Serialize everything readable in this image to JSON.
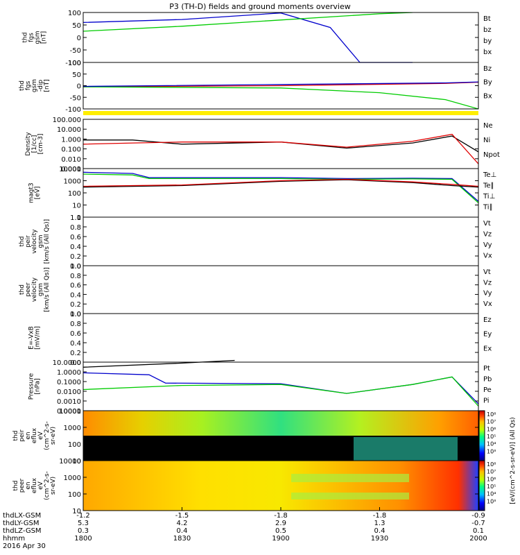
{
  "title": "P3 (TH-D) fields and ground moments overview",
  "colors": {
    "black": "#000000",
    "red": "#e00000",
    "green": "#00cc00",
    "blue": "#0000cc",
    "yellow": "#ffee00"
  },
  "panels": [
    {
      "ylabel": [
        "thd",
        "fgs",
        "gsm",
        "[nT]"
      ],
      "ticks": [
        "100",
        "50",
        "0",
        "-50",
        "-100"
      ],
      "legend": [
        {
          "text": "Bt",
          "color": "black"
        },
        {
          "text": "bz",
          "color": "red"
        },
        {
          "text": "by",
          "color": "green"
        },
        {
          "text": "bx",
          "color": "blue"
        }
      ]
    },
    {
      "ylabel": [
        "thd",
        "fgs",
        "gsm",
        "-dip",
        "[nT]"
      ],
      "ticks": [
        "100",
        "50",
        "0",
        "-50",
        "-100"
      ],
      "legend": [
        {
          "text": "Bz",
          "color": "red"
        },
        {
          "text": "By",
          "color": "green"
        },
        {
          "text": "Bx",
          "color": "blue"
        }
      ]
    },
    {
      "ylabel": [
        "Density",
        "[1/cc]",
        "[cm-3]"
      ],
      "ticks": [
        "100.000",
        "10.000",
        "1.000",
        "0.100",
        "0.010",
        "0.001"
      ],
      "legend": [
        {
          "text": "Ne",
          "color": "red"
        },
        {
          "text": "Ni",
          "color": "black"
        },
        {
          "text": "Npot",
          "color": "blue"
        }
      ]
    },
    {
      "ylabel": [
        "magt3",
        "[eV]"
      ],
      "ticks": [
        "10000",
        "1000",
        "100",
        "10",
        "1"
      ],
      "legend": [
        {
          "text": "Te⊥",
          "color": "red"
        },
        {
          "text": "Te∥",
          "color": "black"
        },
        {
          "text": "Ti⊥",
          "color": "blue"
        },
        {
          "text": "Ti∥",
          "color": "green"
        }
      ]
    },
    {
      "ylabel": [
        "thd",
        "peir",
        "velocity",
        "gsm",
        "[km/s (All Qs)]"
      ],
      "ticks": [
        "1.0",
        "0.8",
        "0.6",
        "0.4",
        "0.2",
        "0.0"
      ],
      "legend": [
        {
          "text": "Vt",
          "color": "black"
        },
        {
          "text": "Vz",
          "color": "red"
        },
        {
          "text": "Vy",
          "color": "green"
        },
        {
          "text": "Vx",
          "color": "blue"
        }
      ]
    },
    {
      "ylabel": [
        "thd",
        "peer",
        "velocity",
        "gsm",
        "[km/s (All Qs)]"
      ],
      "ticks": [
        "1.0",
        "0.8",
        "0.6",
        "0.4",
        "0.2",
        "0.0"
      ],
      "legend": [
        {
          "text": "Vt",
          "color": "black"
        },
        {
          "text": "Vz",
          "color": "red"
        },
        {
          "text": "Vy",
          "color": "green"
        },
        {
          "text": "Vx",
          "color": "blue"
        }
      ]
    },
    {
      "ylabel": [
        "E=-VxB",
        "[mV/m]"
      ],
      "ticks": [
        "1.0",
        "0.8",
        "0.6",
        "0.4",
        "0.2",
        "0.0"
      ],
      "legend": [
        {
          "text": "Ez",
          "color": "red"
        },
        {
          "text": "Ey",
          "color": "green"
        },
        {
          "text": "Ex",
          "color": "blue"
        }
      ]
    },
    {
      "ylabel": [
        "Pressure",
        "[nPa]"
      ],
      "ticks": [
        "10.0000",
        "1.0000",
        "0.1000",
        "0.0100",
        "0.0010",
        "0.0001"
      ],
      "legend": [
        {
          "text": "Pt",
          "color": "black"
        },
        {
          "text": "Pb",
          "color": "red"
        },
        {
          "text": "Pe",
          "color": "green"
        },
        {
          "text": "Pi",
          "color": "blue"
        }
      ]
    },
    {
      "ylabel": [
        "thd",
        "peir",
        "en",
        "eflux",
        "eV",
        "(cm^2-s-",
        "sr-eV)"
      ],
      "ticks": [
        "10000",
        "1000",
        "100",
        "10"
      ],
      "legend": []
    },
    {
      "ylabel": [
        "thd",
        "peer",
        "en",
        "eflux",
        "eV",
        "(cm^2-s-",
        "sr-eV)"
      ],
      "ticks": [
        "10000",
        "1000",
        "100",
        "10"
      ],
      "legend": []
    }
  ],
  "colorbar": {
    "ticks_top": [
      "10⁸",
      "10⁷",
      "10⁶",
      "10⁵",
      "10⁴",
      "10³"
    ],
    "ticks_bottom": [
      "10⁸",
      "10⁷",
      "10⁶",
      "10⁵",
      "10⁴",
      "10³"
    ],
    "label": "[eV/(cm^2-s-sr-eV)] (All Qs)"
  },
  "xaxis": {
    "row_labels": [
      "thdLX-GSM",
      "thdLY-GSM",
      "thdLZ-GSM",
      "hhmm",
      "2016 Apr 30"
    ],
    "ticks": [
      {
        "lx": "-1.2",
        "ly": "5.3",
        "lz": "0.3",
        "hhmm": "1800"
      },
      {
        "lx": "-1.5",
        "ly": "4.2",
        "lz": "0.4",
        "hhmm": "1830"
      },
      {
        "lx": "-1.8",
        "ly": "2.9",
        "lz": "0.5",
        "hhmm": "1900"
      },
      {
        "lx": "-1.8",
        "ly": "1.3",
        "lz": "0.4",
        "hhmm": "1930"
      },
      {
        "lx": "-0.9",
        "ly": "-0.7",
        "lz": "0.1",
        "hhmm": "2000"
      }
    ]
  },
  "chart_data": {
    "type": "line",
    "title": "P3 (TH-D) fields and ground moments overview",
    "x_time_range": [
      "1800",
      "2000"
    ],
    "series": [
      {
        "name": "bx",
        "panel": 0,
        "color": "blue",
        "x_min": [
          0,
          30,
          60,
          75,
          84,
          100
        ],
        "values": [
          60,
          72,
          98,
          40,
          -100,
          -100
        ]
      },
      {
        "name": "by",
        "panel": 0,
        "color": "green",
        "x_min": [
          0,
          30,
          60,
          90,
          100
        ],
        "values": [
          25,
          45,
          70,
          95,
          100
        ]
      },
      {
        "name": "Bz",
        "panel": 1,
        "color": "red",
        "x_min": [
          0,
          60,
          110,
          120,
          125,
          130
        ],
        "values": [
          -5,
          0,
          10,
          15,
          -80,
          100
        ]
      },
      {
        "name": "By",
        "panel": 1,
        "color": "green",
        "x_min": [
          0,
          60,
          90,
          110,
          120,
          128
        ],
        "values": [
          -5,
          -10,
          -30,
          -60,
          -100,
          -150
        ]
      },
      {
        "name": "Bx",
        "panel": 1,
        "color": "blue",
        "x_min": [
          0,
          60,
          110,
          120
        ],
        "values": [
          -3,
          5,
          12,
          16
        ]
      },
      {
        "name": "Ni",
        "panel": 2,
        "color": "black",
        "x_min": [
          0,
          15,
          30,
          60,
          80,
          100,
          112,
          120
        ],
        "values": [
          0.8,
          0.8,
          0.3,
          0.5,
          0.12,
          0.4,
          2.0,
          0.05
        ]
      },
      {
        "name": "Ne",
        "panel": 2,
        "color": "red",
        "x_min": [
          0,
          15,
          30,
          60,
          80,
          100,
          112,
          120
        ],
        "values": [
          0.3,
          0.4,
          0.5,
          0.5,
          0.15,
          0.6,
          3.0,
          0.003
        ]
      },
      {
        "name": "Ti⊥",
        "panel": 3,
        "color": "blue",
        "x_min": [
          0,
          15,
          20,
          60,
          80,
          100,
          112,
          120
        ],
        "values": [
          5000,
          4000,
          1800,
          1800,
          1500,
          1600,
          1500,
          20
        ]
      },
      {
        "name": "Ti∥",
        "panel": 3,
        "color": "green",
        "x_min": [
          0,
          15,
          20,
          60,
          80,
          100,
          112,
          120
        ],
        "values": [
          3500,
          3000,
          1500,
          1500,
          1300,
          1400,
          1300,
          15
        ]
      },
      {
        "name": "Te∥",
        "panel": 3,
        "color": "black",
        "x_min": [
          0,
          30,
          60,
          80,
          100,
          112,
          120
        ],
        "values": [
          300,
          400,
          900,
          1200,
          700,
          400,
          300
        ]
      },
      {
        "name": "Te⊥",
        "panel": 3,
        "color": "red",
        "x_min": [
          0,
          30,
          60,
          80,
          100,
          112,
          120
        ],
        "values": [
          350,
          450,
          1000,
          1300,
          800,
          500,
          350
        ]
      },
      {
        "name": "Pt",
        "panel": 7,
        "color": "black",
        "x_min": [
          0,
          30,
          46
        ],
        "values": [
          3,
          8,
          15
        ]
      },
      {
        "name": "Pi",
        "panel": 7,
        "color": "blue",
        "x_min": [
          0,
          20,
          25,
          60,
          80,
          100,
          112,
          120
        ],
        "values": [
          0.8,
          0.5,
          0.07,
          0.06,
          0.006,
          0.05,
          0.3,
          0.0005
        ]
      },
      {
        "name": "Pe",
        "panel": 7,
        "color": "green",
        "x_min": [
          0,
          30,
          60,
          80,
          100,
          112,
          120
        ],
        "values": [
          0.015,
          0.04,
          0.05,
          0.006,
          0.05,
          0.3,
          0.0003
        ]
      }
    ]
  }
}
